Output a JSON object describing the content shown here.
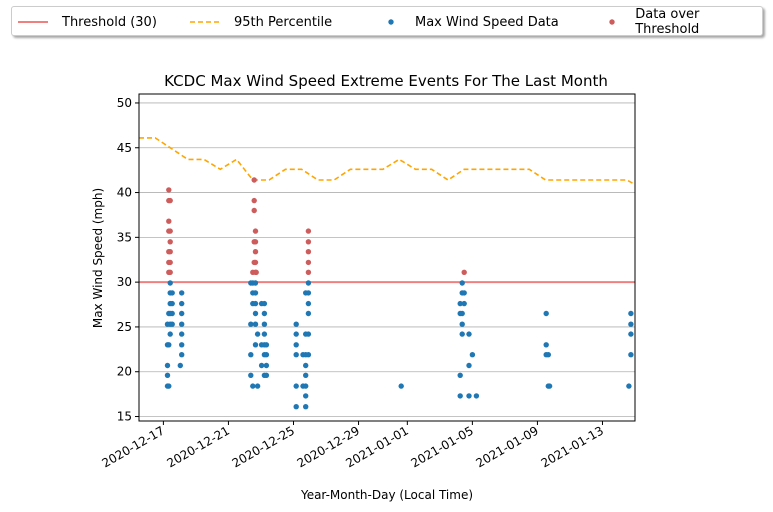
{
  "chart_data": {
    "type": "scatter",
    "title": "KCDC Max Wind Speed Extreme Events For The Last Month",
    "xlabel": "Year-Month-Day (Local Time)",
    "ylabel": "Max Wind Speed (mph)",
    "ylim": [
      14.5,
      51
    ],
    "xlim": [
      "2020-12-15T12:00",
      "2021-01-15T00:00"
    ],
    "yticks": [
      15,
      20,
      25,
      30,
      35,
      40,
      45,
      50
    ],
    "xticks": [
      "2020-12-17",
      "2020-12-21",
      "2020-12-25",
      "2020-12-29",
      "2021-01-01",
      "2021-01-05",
      "2021-01-09",
      "2021-01-13"
    ],
    "grid": "horizontal",
    "legend_position": "top, outside plot",
    "threshold": {
      "name": "Threshold (30)",
      "value": 30,
      "color": "#f08080"
    },
    "percentile_95": {
      "name": "95th Percentile",
      "color": "#ffa500",
      "x": [
        "2020-12-15T12:00",
        "2020-12-16T12:00",
        "2020-12-17T12:00",
        "2020-12-18T12:00",
        "2020-12-19T12:00",
        "2020-12-20T12:00",
        "2020-12-21T12:00",
        "2020-12-22T12:00",
        "2020-12-23T12:00",
        "2020-12-24T12:00",
        "2020-12-25T12:00",
        "2020-12-26T12:00",
        "2020-12-27T12:00",
        "2020-12-28T12:00",
        "2020-12-29T12:00",
        "2020-12-30T12:00",
        "2020-12-31T12:00",
        "2021-01-01T12:00",
        "2021-01-02T12:00",
        "2021-01-03T12:00",
        "2021-01-04T12:00",
        "2021-01-05T12:00",
        "2021-01-06T12:00",
        "2021-01-07T12:00",
        "2021-01-08T12:00",
        "2021-01-09T12:00",
        "2021-01-10T12:00",
        "2021-01-11T12:00",
        "2021-01-12T12:00",
        "2021-01-13T12:00",
        "2021-01-14T12:00",
        "2021-01-15T00:00"
      ],
      "y": [
        46.1,
        46.1,
        44.9,
        43.7,
        43.7,
        42.6,
        43.7,
        41.4,
        41.4,
        42.6,
        42.6,
        41.4,
        41.4,
        42.6,
        42.6,
        42.6,
        43.7,
        42.6,
        42.6,
        41.4,
        42.6,
        42.6,
        42.6,
        42.6,
        42.6,
        41.4,
        41.4,
        41.4,
        41.4,
        41.4,
        41.4,
        40.9
      ]
    },
    "series": [
      {
        "name": "Max Wind Speed Data",
        "color": "#1f77b4",
        "points": [
          [
            "2020-12-17T06:00",
            18.4
          ],
          [
            "2020-12-17T06:00",
            19.6
          ],
          [
            "2020-12-17T06:00",
            20.7
          ],
          [
            "2020-12-17T06:00",
            23.0
          ],
          [
            "2020-12-17T06:00",
            25.3
          ],
          [
            "2020-12-17T08:00",
            18.4
          ],
          [
            "2020-12-17T08:00",
            23.0
          ],
          [
            "2020-12-17T08:00",
            26.5
          ],
          [
            "2020-12-17T10:00",
            24.2
          ],
          [
            "2020-12-17T10:00",
            25.3
          ],
          [
            "2020-12-17T10:00",
            26.5
          ],
          [
            "2020-12-17T10:00",
            27.6
          ],
          [
            "2020-12-17T10:00",
            28.8
          ],
          [
            "2020-12-17T10:00",
            29.9
          ],
          [
            "2020-12-17T13:00",
            25.3
          ],
          [
            "2020-12-17T13:00",
            26.5
          ],
          [
            "2020-12-17T13:00",
            27.6
          ],
          [
            "2020-12-17T13:00",
            28.8
          ],
          [
            "2020-12-18T01:00",
            20.7
          ],
          [
            "2020-12-18T03:00",
            21.9
          ],
          [
            "2020-12-18T03:00",
            23.0
          ],
          [
            "2020-12-18T03:00",
            24.2
          ],
          [
            "2020-12-18T03:00",
            25.3
          ],
          [
            "2020-12-18T03:00",
            26.5
          ],
          [
            "2020-12-18T03:00",
            27.6
          ],
          [
            "2020-12-18T03:00",
            28.8
          ],
          [
            "2020-12-22T09:00",
            19.6
          ],
          [
            "2020-12-22T09:00",
            21.9
          ],
          [
            "2020-12-22T09:00",
            25.3
          ],
          [
            "2020-12-22T09:00",
            29.9
          ],
          [
            "2020-12-22T12:00",
            18.4
          ],
          [
            "2020-12-22T12:00",
            27.6
          ],
          [
            "2020-12-22T12:00",
            28.8
          ],
          [
            "2020-12-22T12:00",
            29.9
          ],
          [
            "2020-12-22T16:00",
            23.0
          ],
          [
            "2020-12-22T16:00",
            25.3
          ],
          [
            "2020-12-22T16:00",
            26.5
          ],
          [
            "2020-12-22T16:00",
            27.6
          ],
          [
            "2020-12-22T16:00",
            28.8
          ],
          [
            "2020-12-22T16:00",
            29.9
          ],
          [
            "2020-12-22T19:00",
            18.4
          ],
          [
            "2020-12-22T19:00",
            24.2
          ],
          [
            "2020-12-23T01:00",
            20.7
          ],
          [
            "2020-12-23T01:00",
            23.0
          ],
          [
            "2020-12-23T01:00",
            27.6
          ],
          [
            "2020-12-23T05:00",
            19.6
          ],
          [
            "2020-12-23T05:00",
            21.9
          ],
          [
            "2020-12-23T05:00",
            23.0
          ],
          [
            "2020-12-23T05:00",
            24.2
          ],
          [
            "2020-12-23T05:00",
            25.3
          ],
          [
            "2020-12-23T05:00",
            26.5
          ],
          [
            "2020-12-23T05:00",
            27.6
          ],
          [
            "2020-12-23T08:00",
            19.6
          ],
          [
            "2020-12-23T08:00",
            20.7
          ],
          [
            "2020-12-23T08:00",
            21.9
          ],
          [
            "2020-12-23T08:00",
            23.0
          ],
          [
            "2020-12-25T04:00",
            16.1
          ],
          [
            "2020-12-25T04:00",
            18.4
          ],
          [
            "2020-12-25T04:00",
            21.9
          ],
          [
            "2020-12-25T04:00",
            23.0
          ],
          [
            "2020-12-25T04:00",
            24.2
          ],
          [
            "2020-12-25T04:00",
            25.3
          ],
          [
            "2020-12-25T14:00",
            18.4
          ],
          [
            "2020-12-25T14:00",
            21.9
          ],
          [
            "2020-12-25T18:00",
            16.1
          ],
          [
            "2020-12-25T18:00",
            17.3
          ],
          [
            "2020-12-25T18:00",
            18.4
          ],
          [
            "2020-12-25T18:00",
            19.6
          ],
          [
            "2020-12-25T18:00",
            20.7
          ],
          [
            "2020-12-25T18:00",
            21.9
          ],
          [
            "2020-12-25T18:00",
            24.2
          ],
          [
            "2020-12-25T18:00",
            28.8
          ],
          [
            "2020-12-25T22:00",
            21.9
          ],
          [
            "2020-12-25T22:00",
            24.2
          ],
          [
            "2020-12-25T22:00",
            26.5
          ],
          [
            "2020-12-25T22:00",
            27.6
          ],
          [
            "2020-12-25T22:00",
            28.8
          ],
          [
            "2020-12-25T22:00",
            29.9
          ],
          [
            "2020-12-31T15:00",
            18.4
          ],
          [
            "2021-01-04T06:00",
            17.3
          ],
          [
            "2021-01-04T06:00",
            19.6
          ],
          [
            "2021-01-04T06:00",
            26.5
          ],
          [
            "2021-01-04T06:00",
            27.6
          ],
          [
            "2021-01-04T09:00",
            24.2
          ],
          [
            "2021-01-04T09:00",
            25.3
          ],
          [
            "2021-01-04T09:00",
            26.5
          ],
          [
            "2021-01-04T09:00",
            28.8
          ],
          [
            "2021-01-04T09:00",
            29.9
          ],
          [
            "2021-01-04T12:00",
            27.6
          ],
          [
            "2021-01-04T12:00",
            28.8
          ],
          [
            "2021-01-04T19:00",
            17.3
          ],
          [
            "2021-01-04T19:00",
            20.7
          ],
          [
            "2021-01-04T19:00",
            24.2
          ],
          [
            "2021-01-05T00:00",
            21.9
          ],
          [
            "2021-01-05T06:00",
            17.3
          ],
          [
            "2021-01-09T13:00",
            21.9
          ],
          [
            "2021-01-09T13:00",
            23.0
          ],
          [
            "2021-01-09T13:00",
            26.5
          ],
          [
            "2021-01-09T16:00",
            18.4
          ],
          [
            "2021-01-09T16:00",
            21.9
          ],
          [
            "2021-01-09T18:00",
            18.4
          ],
          [
            "2021-01-14T15:00",
            18.4
          ],
          [
            "2021-01-14T18:00",
            21.9
          ],
          [
            "2021-01-14T18:00",
            24.2
          ],
          [
            "2021-01-14T18:00",
            25.3
          ],
          [
            "2021-01-14T18:00",
            26.5
          ]
        ]
      },
      {
        "name": "Data over Threshold",
        "color": "#cd5c5c",
        "points": [
          [
            "2020-12-17T08:00",
            31.1
          ],
          [
            "2020-12-17T08:00",
            32.2
          ],
          [
            "2020-12-17T08:00",
            33.4
          ],
          [
            "2020-12-17T08:00",
            35.7
          ],
          [
            "2020-12-17T08:00",
            36.8
          ],
          [
            "2020-12-17T08:00",
            39.1
          ],
          [
            "2020-12-17T08:00",
            40.3
          ],
          [
            "2020-12-17T10:00",
            31.1
          ],
          [
            "2020-12-17T10:00",
            32.2
          ],
          [
            "2020-12-17T10:00",
            33.4
          ],
          [
            "2020-12-17T10:00",
            34.5
          ],
          [
            "2020-12-17T10:00",
            35.7
          ],
          [
            "2020-12-17T10:00",
            39.1
          ],
          [
            "2020-12-22T12:00",
            31.1
          ],
          [
            "2020-12-22T14:00",
            32.2
          ],
          [
            "2020-12-22T14:00",
            34.5
          ],
          [
            "2020-12-22T14:00",
            38.0
          ],
          [
            "2020-12-22T14:00",
            39.1
          ],
          [
            "2020-12-22T14:00",
            41.4
          ],
          [
            "2020-12-22T16:00",
            31.1
          ],
          [
            "2020-12-22T16:00",
            32.2
          ],
          [
            "2020-12-22T16:00",
            33.4
          ],
          [
            "2020-12-22T16:00",
            34.5
          ],
          [
            "2020-12-22T16:00",
            35.7
          ],
          [
            "2020-12-22T17:00",
            31.1
          ],
          [
            "2020-12-25T22:00",
            31.1
          ],
          [
            "2020-12-25T22:00",
            32.2
          ],
          [
            "2020-12-25T22:00",
            33.4
          ],
          [
            "2020-12-25T22:00",
            34.5
          ],
          [
            "2020-12-25T22:00",
            35.7
          ],
          [
            "2021-01-04T12:00",
            31.1
          ]
        ]
      }
    ]
  }
}
